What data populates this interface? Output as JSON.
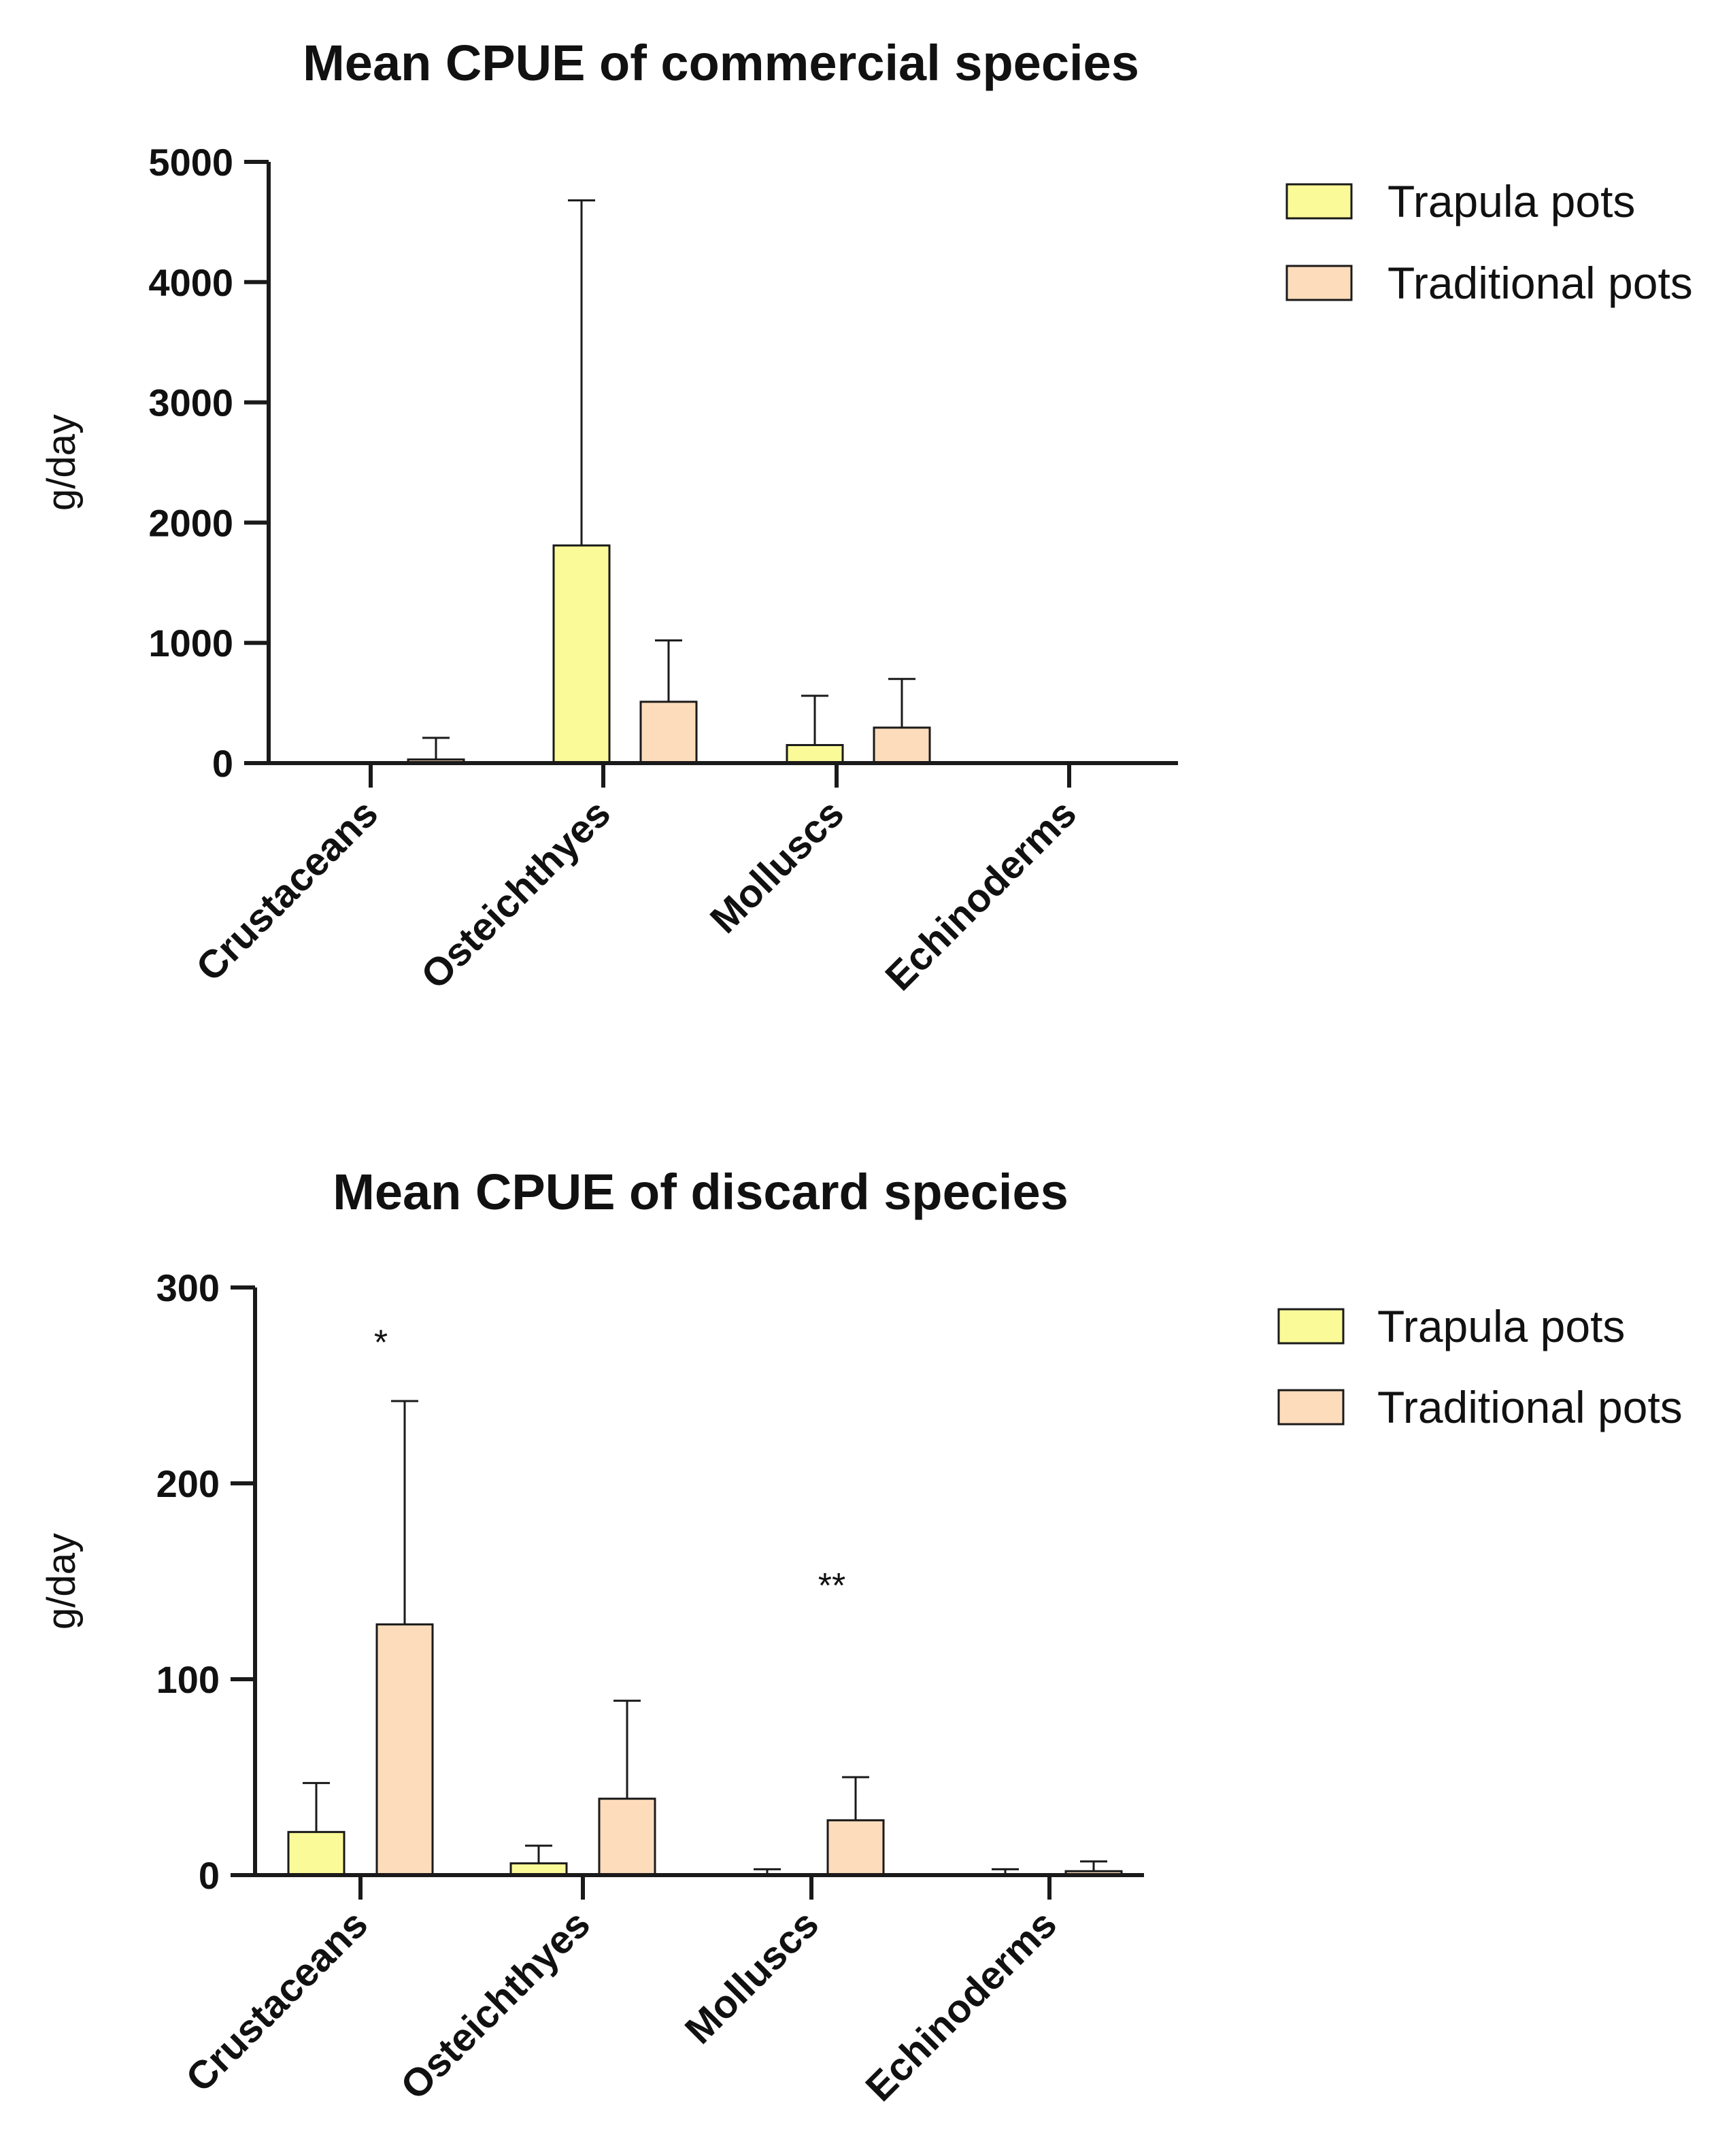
{
  "colors": {
    "trapula": "#fafa98",
    "traditional": "#fddcbc",
    "axis": "#1a1a1a"
  },
  "chart_data": [
    {
      "type": "bar",
      "title": "Mean CPUE of commercial species",
      "ylabel": "g/day",
      "xlabel": "",
      "ylim": [
        0,
        5000
      ],
      "yticks": [
        "0",
        "1000",
        "2000",
        "3000",
        "4000",
        "5000"
      ],
      "categories": [
        "Crustaceans",
        "Osteichthyes",
        "Molluscs",
        "Echinoderms"
      ],
      "legend_position": "top-right",
      "series": [
        {
          "name": "Trapula pots",
          "values": [
            0,
            1810,
            150,
            0
          ],
          "errors": [
            0,
            2870,
            410,
            0
          ]
        },
        {
          "name": "Traditional pots",
          "values": [
            30,
            510,
            295,
            0
          ],
          "errors": [
            180,
            510,
            405,
            0
          ]
        }
      ],
      "annotations": []
    },
    {
      "type": "bar",
      "title": "Mean CPUE of discard species",
      "ylabel": "g/day",
      "xlabel": "",
      "ylim": [
        0,
        300
      ],
      "yticks": [
        "0",
        "100",
        "200",
        "300"
      ],
      "categories": [
        "Crustaceans",
        "Osteichthyes",
        "Molluscs",
        "Echinoderms"
      ],
      "legend_position": "top-right",
      "series": [
        {
          "name": "Trapula pots",
          "values": [
            22,
            6,
            0,
            0
          ],
          "errors": [
            25,
            9,
            3,
            3
          ]
        },
        {
          "name": "Traditional pots",
          "values": [
            128,
            39,
            28,
            2
          ],
          "errors": [
            114,
            50,
            22,
            5
          ]
        }
      ],
      "annotations": [
        {
          "text": "*",
          "category": 0,
          "value": 272
        },
        {
          "text": "**",
          "category": 2,
          "value": 148
        }
      ]
    }
  ]
}
